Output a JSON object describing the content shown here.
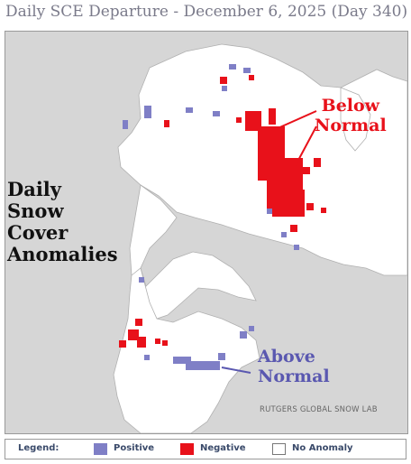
{
  "title": "Daily SCE Departure - December 6, 2025 (Day 340)",
  "map": {
    "caption_lines": [
      "Daily",
      "Snow",
      "Cover",
      "Anomalies"
    ],
    "below_normal_lines": [
      "Below",
      "Normal"
    ],
    "above_normal_lines": [
      "Above",
      "Normal"
    ],
    "credit": "RUTGERS GLOBAL SNOW LAB"
  },
  "legend": {
    "title": "Legend:",
    "positive_label": "Positive",
    "negative_label": "Negative",
    "no_anomaly_label": "No Anomaly"
  },
  "colors": {
    "positive": "#7f7fc6",
    "negative": "#e8111a",
    "no_anomaly": "#ffffff",
    "ocean": "#d6d6d6",
    "land": "#ffffff"
  }
}
